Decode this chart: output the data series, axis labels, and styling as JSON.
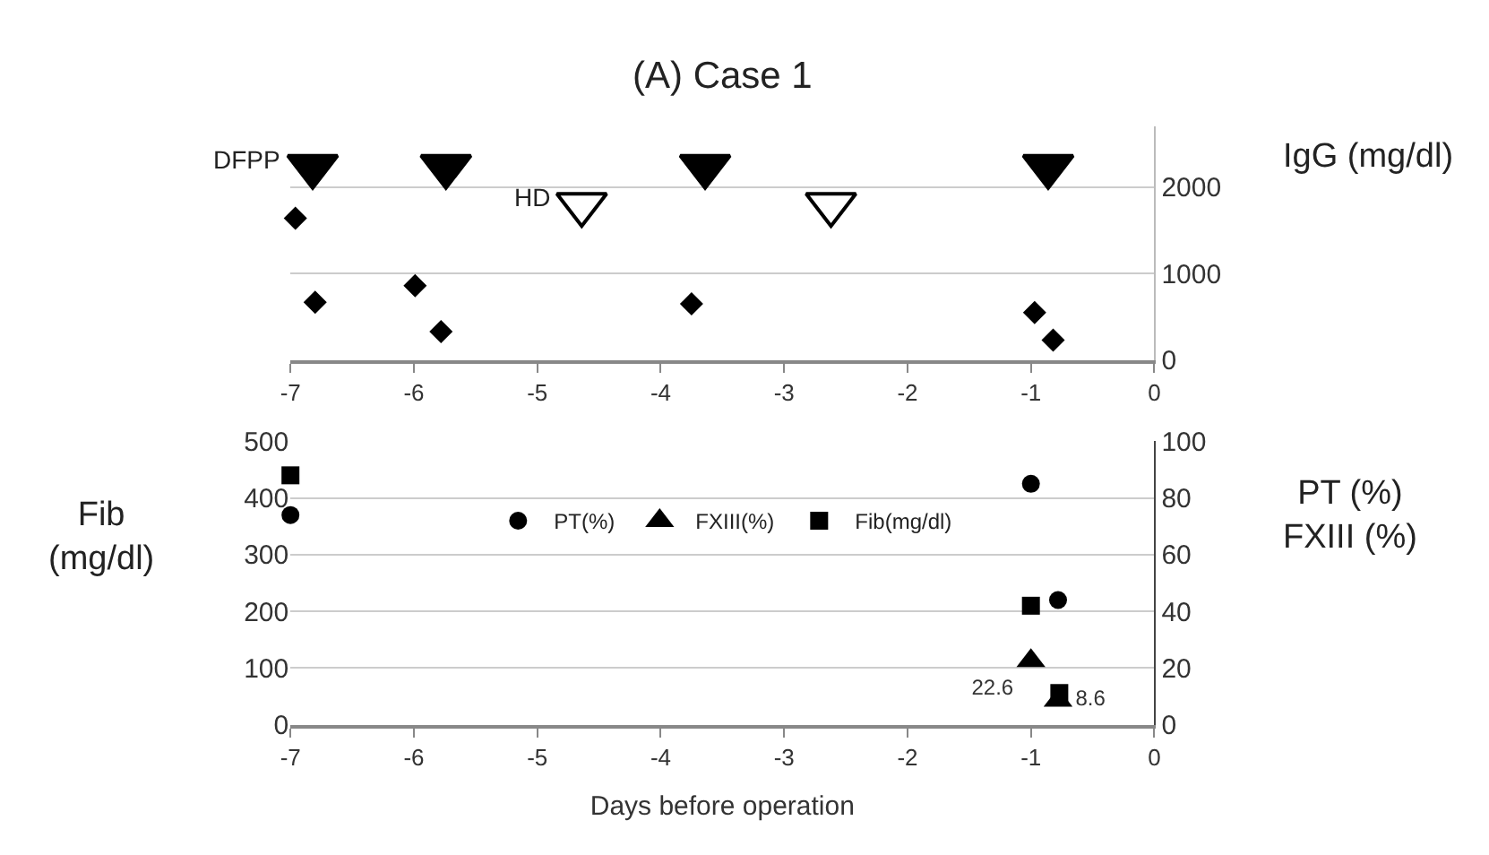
{
  "chart_data": [
    {
      "type": "scatter",
      "title": "(A) Case 1",
      "y2label": "IgG (mg/dl)",
      "xlim": [
        -7,
        0
      ],
      "xticks": [
        -7,
        -6,
        -5,
        -4,
        -3,
        -2,
        -1,
        0
      ],
      "y2lim": [
        0,
        2700
      ],
      "y2ticks": [
        0,
        1000,
        2000
      ],
      "grid": "y",
      "legend": false,
      "series": [
        {
          "color": "#000000",
          "marker": "diamond",
          "axis": "y2",
          "x": [
            -6.96,
            -6.8,
            -5.99,
            -5.78,
            -3.75,
            -0.97,
            -0.82
          ],
          "values": [
            1640,
            670,
            860,
            330,
            650,
            550,
            230
          ]
        },
        {
          "name": "DFPP",
          "color": "#000000",
          "axis": "y2",
          "x": [
            -6.82,
            -5.74,
            -3.64,
            -0.86
          ],
          "values": [
            2240,
            2240,
            2240,
            2240
          ]
        },
        {
          "name": "HD",
          "color": "#ffffff",
          "axis": "y2",
          "x": [
            -4.64,
            -2.62
          ],
          "values": [
            1800,
            1800
          ]
        }
      ]
    },
    {
      "type": "scatter",
      "xlabel": "Days before operation",
      "ylabel": "Fib\n(mg/dl)",
      "y2label": "PT (%)\nFXIII (%)",
      "xlim": [
        -7,
        0
      ],
      "xticks": [
        -7,
        -6,
        -5,
        -4,
        -3,
        -2,
        -1,
        0
      ],
      "ylim": [
        0,
        500
      ],
      "yticks": [
        0,
        100,
        200,
        300,
        400,
        500
      ],
      "y2lim": [
        0,
        100
      ],
      "y2ticks": [
        0,
        20,
        40,
        60,
        80,
        100
      ],
      "grid": "y",
      "legend": "top",
      "series": [
        {
          "name": "PT(%)",
          "color": "#000000",
          "marker": "circle",
          "axis": "y2",
          "x": [
            -7,
            -1,
            -0.78
          ],
          "values": [
            74,
            85,
            44
          ]
        },
        {
          "name": "FXIII(%)",
          "color": "#000000",
          "marker": "triangle",
          "axis": "y2",
          "x": [
            -1,
            -0.78
          ],
          "values": [
            22.6,
            8.6
          ],
          "value_labels": [
            "22.6",
            "8.6"
          ]
        },
        {
          "name": "Fib(mg/dl)",
          "color": "#000000",
          "marker": "square",
          "x": [
            -7,
            -1,
            -0.77
          ],
          "values": [
            440,
            210,
            56
          ]
        }
      ]
    }
  ]
}
